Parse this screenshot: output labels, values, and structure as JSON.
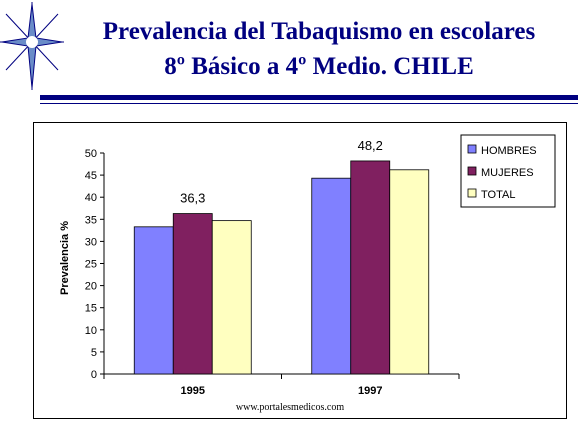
{
  "header": {
    "title_line1": "Prevalencia del Tabaquismo en escolares",
    "title_line2": "8º Básico a 4º Medio. CHILE",
    "accent_color": "#000080"
  },
  "footer": {
    "source": "www.portalesmedicos.com"
  },
  "chart_data": {
    "type": "bar",
    "title": "",
    "xlabel": "",
    "ylabel": "Prevalencia %",
    "categories": [
      "1995",
      "1997"
    ],
    "series": [
      {
        "name": "HOMBRES",
        "color": "#8080ff",
        "values": [
          33.3,
          44.3
        ]
      },
      {
        "name": "MUJERES",
        "color": "#802060",
        "values": [
          36.3,
          48.2
        ]
      },
      {
        "name": "TOTAL",
        "color": "#ffffc0",
        "values": [
          34.7,
          46.2
        ]
      }
    ],
    "data_labels": [
      {
        "category": "1995",
        "series": "MUJERES",
        "text": "36,3"
      },
      {
        "category": "1997",
        "series": "MUJERES",
        "text": "48,2"
      }
    ],
    "ylim": [
      0,
      50
    ],
    "yticks": [
      0,
      5,
      10,
      15,
      20,
      25,
      30,
      35,
      40,
      45,
      50
    ],
    "grid": false,
    "legend_position": "top-right"
  }
}
